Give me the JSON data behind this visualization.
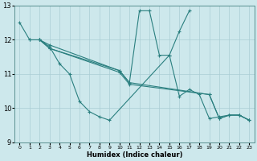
{
  "xlabel": "Humidex (Indice chaleur)",
  "xlim": [
    -0.5,
    23.5
  ],
  "ylim": [
    9,
    13
  ],
  "yticks": [
    9,
    10,
    11,
    12,
    13
  ],
  "xticks": [
    0,
    1,
    2,
    3,
    4,
    5,
    6,
    7,
    8,
    9,
    10,
    11,
    12,
    13,
    14,
    15,
    16,
    17,
    18,
    19,
    20,
    21,
    22,
    23
  ],
  "bg_color": "#cde8ec",
  "line_color": "#2a7f7f",
  "grid_color": "#aacdd4",
  "lines": [
    {
      "x": [
        0,
        1,
        2,
        3,
        4,
        5,
        6,
        7,
        8,
        9,
        15,
        16,
        17,
        18,
        19,
        20,
        21,
        22,
        23
      ],
      "y": [
        12.5,
        12.0,
        12.0,
        11.8,
        11.3,
        11.0,
        10.2,
        9.9,
        9.75,
        9.65,
        11.55,
        10.35,
        10.55,
        10.4,
        9.7,
        9.75,
        9.8,
        9.8,
        9.65
      ]
    },
    {
      "x": [
        1,
        2,
        3,
        10,
        11,
        19,
        20,
        21,
        22,
        23
      ],
      "y": [
        12.0,
        12.0,
        11.85,
        11.1,
        10.75,
        10.4,
        9.7,
        9.8,
        9.8,
        9.65
      ]
    },
    {
      "x": [
        2,
        3,
        10,
        11,
        19,
        20,
        21,
        22,
        23
      ],
      "y": [
        12.0,
        11.75,
        11.05,
        10.7,
        10.4,
        9.7,
        9.8,
        9.8,
        9.65
      ]
    },
    {
      "x": [
        2,
        3,
        10,
        11,
        12,
        13,
        14,
        15,
        16,
        17
      ],
      "y": [
        12.0,
        11.75,
        11.1,
        10.75,
        12.85,
        12.85,
        11.55,
        11.55,
        12.25,
        12.85
      ]
    }
  ]
}
